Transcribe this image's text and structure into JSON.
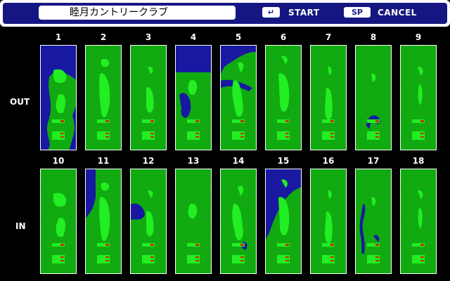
{
  "header": {
    "course_name": "睦月カントリークラブ",
    "start_key": "↵",
    "start_label": "START",
    "cancel_key": "SP",
    "cancel_label": "CANCEL"
  },
  "rows": [
    {
      "label": "OUT",
      "holes": [
        "1",
        "2",
        "3",
        "4",
        "5",
        "6",
        "7",
        "8",
        "9"
      ]
    },
    {
      "label": "IN",
      "holes": [
        "10",
        "11",
        "12",
        "13",
        "14",
        "15",
        "16",
        "17",
        "18"
      ]
    }
  ],
  "colors": {
    "rough": "#22c822",
    "fairway": "#22ee22",
    "water": "#1818a0",
    "frame": "#1a1a8a",
    "tee": "#c83000"
  }
}
